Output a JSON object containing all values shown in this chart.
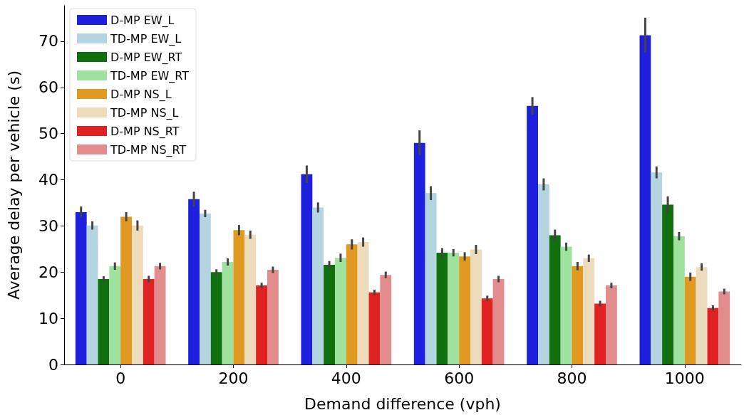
{
  "chart_data": {
    "type": "bar",
    "xlabel": "Demand difference (vph)",
    "ylabel": "Average delay per vehicle (s)",
    "categories": [
      "0",
      "200",
      "400",
      "600",
      "800",
      "1000"
    ],
    "ylim": [
      0,
      77.7
    ],
    "yticks": [
      0,
      10,
      20,
      30,
      40,
      50,
      60,
      70
    ],
    "grid": false,
    "legend": "top left",
    "series": [
      {
        "name": "D-MP EW_L",
        "color": "#1f1fe0",
        "values": [
          33,
          35.8,
          41.2,
          48,
          56,
          71.3
        ],
        "errors": [
          1.2,
          1.6,
          1.9,
          2.7,
          1.9,
          3.8
        ]
      },
      {
        "name": "TD-MP EW_L",
        "color": "#b4d5e0",
        "values": [
          30.1,
          32.7,
          34,
          37.1,
          39,
          41.6
        ],
        "errors": [
          0.9,
          0.8,
          1.1,
          1.5,
          1.3,
          1.3
        ]
      },
      {
        "name": "D-MP EW_RT",
        "color": "#107010",
        "values": [
          18.5,
          20,
          21.6,
          24.2,
          28,
          34.6
        ],
        "errors": [
          0.6,
          0.6,
          0.8,
          1.0,
          1.2,
          1.8
        ]
      },
      {
        "name": "TD-MP EW_RT",
        "color": "#9ee29e",
        "values": [
          21.3,
          22.2,
          23.1,
          24.2,
          25.5,
          27.8
        ],
        "errors": [
          0.8,
          0.8,
          0.9,
          0.8,
          0.9,
          0.9
        ]
      },
      {
        "name": "D-MP NS_L",
        "color": "#e09a22",
        "values": [
          32,
          29.1,
          26,
          23.4,
          21.3,
          19
        ],
        "errors": [
          1.0,
          1.1,
          1.1,
          0.9,
          0.9,
          0.9
        ]
      },
      {
        "name": "TD-MP NS_L",
        "color": "#ecdcbc",
        "values": [
          30.1,
          28.1,
          26.5,
          24.9,
          23,
          21.1
        ],
        "errors": [
          1.1,
          0.9,
          1.0,
          1.0,
          0.8,
          0.8
        ]
      },
      {
        "name": "D-MP NS_RT",
        "color": "#e02222",
        "values": [
          18.5,
          17.1,
          15.6,
          14.3,
          13.2,
          12.2
        ],
        "errors": [
          0.7,
          0.6,
          0.6,
          0.6,
          0.6,
          0.6
        ]
      },
      {
        "name": "TD-MP NS_RT",
        "color": "#e28c8e",
        "values": [
          21.3,
          20.5,
          19.4,
          18.5,
          17.1,
          15.8
        ],
        "errors": [
          0.7,
          0.7,
          0.7,
          0.7,
          0.6,
          0.6
        ]
      }
    ]
  }
}
